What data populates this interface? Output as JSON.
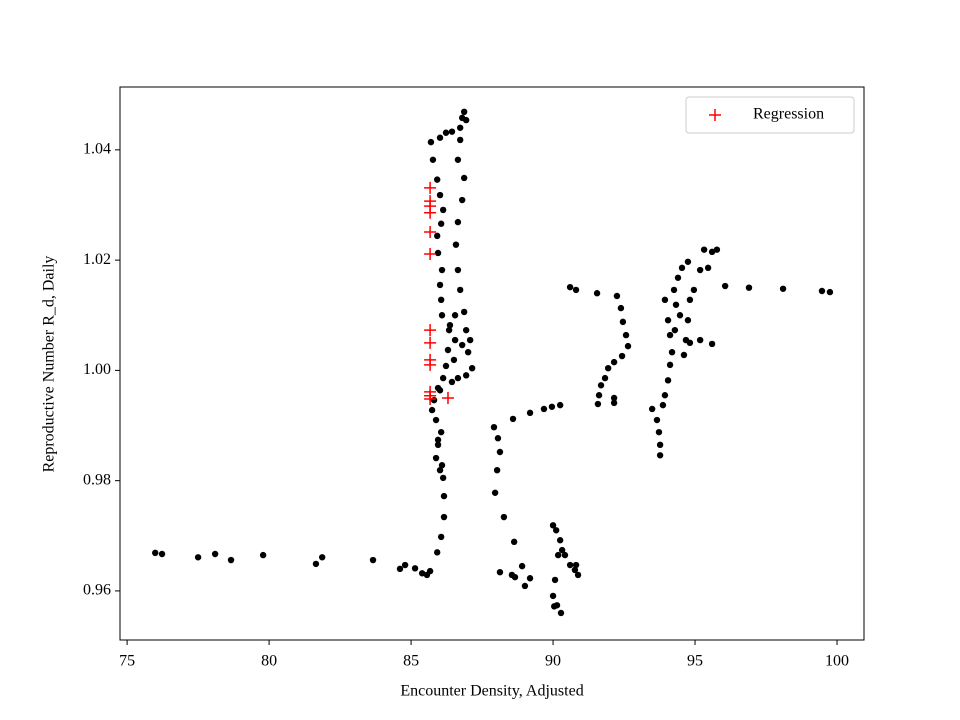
{
  "chart_data": {
    "type": "scatter",
    "xlabel": "Encounter Density, Adjusted",
    "ylabel": "Reproductive Number R_d, Daily",
    "xlim": [
      74.75,
      100.95
    ],
    "ylim": [
      0.9511,
      1.0514
    ],
    "xticks": [
      75,
      80,
      85,
      90,
      95,
      100
    ],
    "yticks": [
      {
        "value": 0.96,
        "label": "0.96"
      },
      {
        "value": 0.98,
        "label": "0.98"
      },
      {
        "value": 1.0,
        "label": "1.00"
      },
      {
        "value": 1.02,
        "label": "1.02"
      },
      {
        "value": 1.04,
        "label": "1.04"
      }
    ],
    "legend": "upper right",
    "series": [
      {
        "color": "#000000",
        "marker": "circle",
        "x": [
          75.99,
          76.23,
          77.5,
          78.1,
          78.66,
          79.79,
          81.65,
          81.87,
          83.66,
          84.61,
          84.79,
          85.14,
          85.39,
          85.56,
          85.67,
          85.92,
          86.06,
          86.16,
          86.16,
          86.13,
          86.02,
          85.88,
          85.95,
          86.06,
          85.88,
          85.74,
          85.81,
          85.95,
          86.13,
          86.23,
          86.3,
          86.34,
          86.09,
          86.06,
          86.02,
          86.09,
          85.95,
          85.92,
          86.06,
          86.13,
          86.02,
          85.92,
          85.77,
          85.7,
          86.02,
          86.23,
          86.44,
          86.73,
          86.8,
          86.87,
          86.94,
          86.73,
          86.65,
          86.87,
          86.8,
          86.65,
          86.58,
          86.65,
          86.73,
          86.87,
          86.94,
          87.01,
          87.15,
          86.94,
          86.65,
          86.44,
          86.51,
          86.55,
          86.37,
          86.55,
          87.08,
          86.8,
          86.02,
          85.95,
          86.09,
          87.92,
          88.06,
          88.13,
          88.03,
          87.96,
          88.27,
          88.63,
          88.13,
          88.55,
          88.66,
          88.91,
          89.01,
          89.19,
          88.59,
          89.19,
          89.68,
          89.96,
          90.25,
          90.0,
          90.11,
          90.25,
          90.32,
          90.42,
          90.6,
          90.77,
          90.88,
          90.81,
          90.18,
          90.07,
          90.0,
          90.14,
          90.28,
          90.04,
          90.6,
          90.81,
          91.55,
          92.25,
          92.39,
          92.46,
          92.57,
          92.64,
          92.43,
          92.15,
          91.94,
          91.83,
          91.69,
          91.62,
          91.58,
          92.15,
          92.15,
          93.49,
          93.66,
          93.73,
          93.77,
          93.77,
          93.87,
          93.94,
          94.05,
          94.12,
          94.19,
          94.12,
          94.05,
          93.94,
          94.26,
          94.4,
          94.54,
          94.75,
          94.96,
          94.82,
          94.75,
          94.68,
          94.61,
          94.82,
          95.18,
          95.6,
          95.46,
          95.6,
          95.77,
          95.32,
          95.18,
          94.33,
          94.47,
          94.29,
          96.06,
          96.9,
          98.1,
          99.47,
          99.75
        ],
        "y": [
          0.9669,
          0.9667,
          0.9661,
          0.9667,
          0.9656,
          0.9665,
          0.9649,
          0.9661,
          0.9656,
          0.964,
          0.9647,
          0.9641,
          0.9632,
          0.9629,
          0.9636,
          0.967,
          0.9698,
          0.9734,
          0.9772,
          0.9805,
          0.9819,
          0.9841,
          0.9865,
          0.9888,
          0.991,
          0.9928,
          0.9946,
          0.9968,
          0.9986,
          1.0008,
          1.0037,
          1.0073,
          1.01,
          1.0128,
          1.0155,
          1.0182,
          1.0213,
          1.0244,
          1.0266,
          1.0291,
          1.0318,
          1.0346,
          1.0382,
          1.0414,
          1.0422,
          1.0431,
          1.0433,
          1.044,
          1.0458,
          1.0469,
          1.0454,
          1.0418,
          1.0382,
          1.0349,
          1.0309,
          1.0269,
          1.0228,
          1.0182,
          1.0146,
          1.0106,
          1.0073,
          1.0033,
          1.0004,
          0.9991,
          0.9986,
          0.9979,
          1.0019,
          1.0055,
          1.0082,
          1.01,
          1.0055,
          1.0046,
          0.9964,
          0.9874,
          0.9828,
          0.9897,
          0.9877,
          0.9852,
          0.9819,
          0.9778,
          0.9734,
          0.9689,
          0.9634,
          0.9629,
          0.9625,
          0.9645,
          0.9609,
          0.9623,
          0.9912,
          0.9923,
          0.993,
          0.9934,
          0.9937,
          0.9719,
          0.971,
          0.9692,
          0.9674,
          0.9665,
          0.9647,
          0.9638,
          0.9629,
          0.9647,
          0.9665,
          0.962,
          0.9591,
          0.9574,
          0.956,
          0.9572,
          1.0151,
          1.0146,
          1.014,
          1.0135,
          1.0113,
          1.0088,
          1.0064,
          1.0044,
          1.0026,
          1.0015,
          1.0004,
          0.9986,
          0.9973,
          0.9955,
          0.9939,
          0.995,
          0.9941,
          0.993,
          0.991,
          0.9888,
          0.9865,
          0.9846,
          0.9937,
          0.9955,
          0.9982,
          1.001,
          1.0033,
          1.0064,
          1.0091,
          1.0128,
          1.0146,
          1.0168,
          1.0186,
          1.0197,
          1.0146,
          1.0128,
          1.0091,
          1.0055,
          1.0028,
          1.005,
          1.0055,
          1.0048,
          1.0186,
          1.0215,
          1.0219,
          1.0219,
          1.0182,
          1.0119,
          1.01,
          1.0073,
          1.0153,
          1.015,
          1.0148,
          1.0144,
          1.0142
        ]
      },
      {
        "name": "Regression",
        "color": "#ff0000",
        "marker": "plus",
        "x": [
          85.67,
          85.67,
          85.67,
          85.67,
          85.67,
          85.67,
          85.67,
          85.67,
          85.67,
          85.67,
          85.67,
          85.67,
          85.67,
          86.3
        ],
        "y": [
          1.0331,
          1.0307,
          1.0298,
          1.0286,
          1.0251,
          1.0211,
          1.0073,
          1.005,
          1.0019,
          1.001,
          0.9961,
          0.9954,
          0.9948,
          0.995
        ]
      }
    ]
  }
}
